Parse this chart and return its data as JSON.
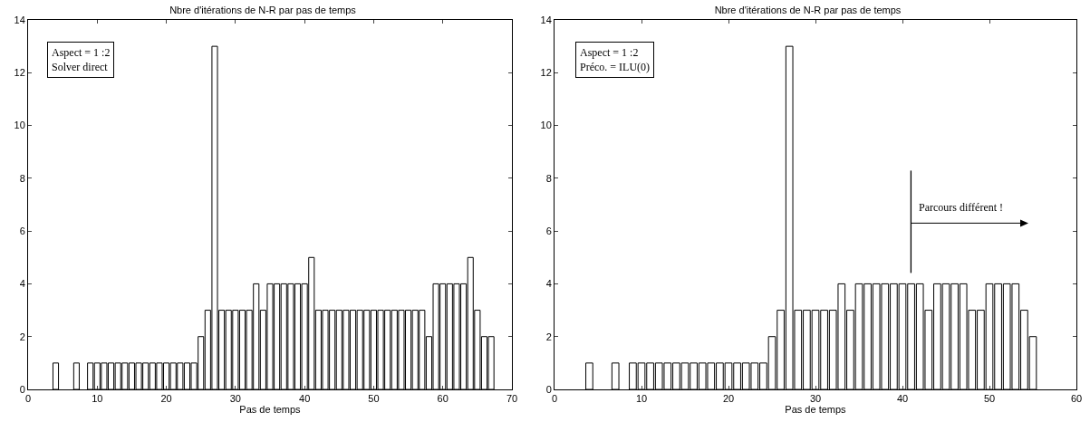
{
  "chart_data": [
    {
      "type": "bar",
      "title": "Nbre d'itérations de N-R par pas de temps",
      "xlabel": "Pas de temps",
      "color": "#ffffff",
      "xlim": [
        0,
        70
      ],
      "xticks": [
        0,
        10,
        20,
        30,
        40,
        50,
        60,
        70
      ],
      "ylim": [
        0,
        14
      ],
      "yticks": [
        0,
        2,
        4,
        6,
        8,
        10,
        12,
        14
      ],
      "grid": false,
      "legend": false,
      "x": [
        4,
        7,
        9,
        10,
        11,
        12,
        13,
        14,
        15,
        16,
        17,
        18,
        19,
        20,
        21,
        22,
        23,
        24,
        25,
        26,
        27,
        28,
        29,
        30,
        31,
        32,
        33,
        34,
        35,
        36,
        37,
        38,
        39,
        40,
        41,
        42,
        43,
        44,
        45,
        46,
        47,
        48,
        49,
        50,
        51,
        52,
        53,
        54,
        55,
        56,
        57,
        58,
        59,
        60,
        61,
        62,
        63,
        64,
        65,
        66,
        67
      ],
      "values": [
        1,
        1,
        1,
        1,
        1,
        1,
        1,
        1,
        1,
        1,
        1,
        1,
        1,
        1,
        1,
        1,
        1,
        1,
        2,
        3,
        13,
        3,
        3,
        3,
        3,
        3,
        4,
        3,
        4,
        4,
        4,
        4,
        4,
        4,
        5,
        3,
        3,
        3,
        3,
        3,
        3,
        3,
        3,
        3,
        3,
        3,
        3,
        3,
        3,
        3,
        3,
        2,
        4,
        4,
        4,
        4,
        4,
        5,
        3,
        2,
        2
      ],
      "annotations": [
        "Aspect = 1 :2",
        "Solver direct"
      ]
    },
    {
      "type": "bar",
      "title": "Nbre d'itérations de N-R par pas de temps",
      "xlabel": "Pas de temps",
      "color": "#ffffff",
      "xlim": [
        0,
        60
      ],
      "xticks": [
        0,
        10,
        20,
        30,
        40,
        50,
        60
      ],
      "ylim": [
        0,
        14
      ],
      "yticks": [
        0,
        2,
        4,
        6,
        8,
        10,
        12,
        14
      ],
      "grid": false,
      "legend": false,
      "x": [
        4,
        7,
        9,
        10,
        11,
        12,
        13,
        14,
        15,
        16,
        17,
        18,
        19,
        20,
        21,
        22,
        23,
        24,
        25,
        26,
        27,
        28,
        29,
        30,
        31,
        32,
        33,
        34,
        35,
        36,
        37,
        38,
        39,
        40,
        41,
        42,
        43,
        44,
        45,
        46,
        47,
        48,
        49,
        50,
        51,
        52,
        53,
        54,
        55
      ],
      "values": [
        1,
        1,
        1,
        1,
        1,
        1,
        1,
        1,
        1,
        1,
        1,
        1,
        1,
        1,
        1,
        1,
        1,
        1,
        2,
        3,
        13,
        3,
        3,
        3,
        3,
        3,
        4,
        3,
        4,
        4,
        4,
        4,
        4,
        4,
        4,
        4,
        3,
        4,
        4,
        4,
        4,
        3,
        3,
        4,
        4,
        4,
        4,
        3,
        2
      ],
      "annotations": [
        "Aspect = 1 :2",
        "Préco. = ILU(0)",
        "Parcours différent !"
      ]
    }
  ]
}
